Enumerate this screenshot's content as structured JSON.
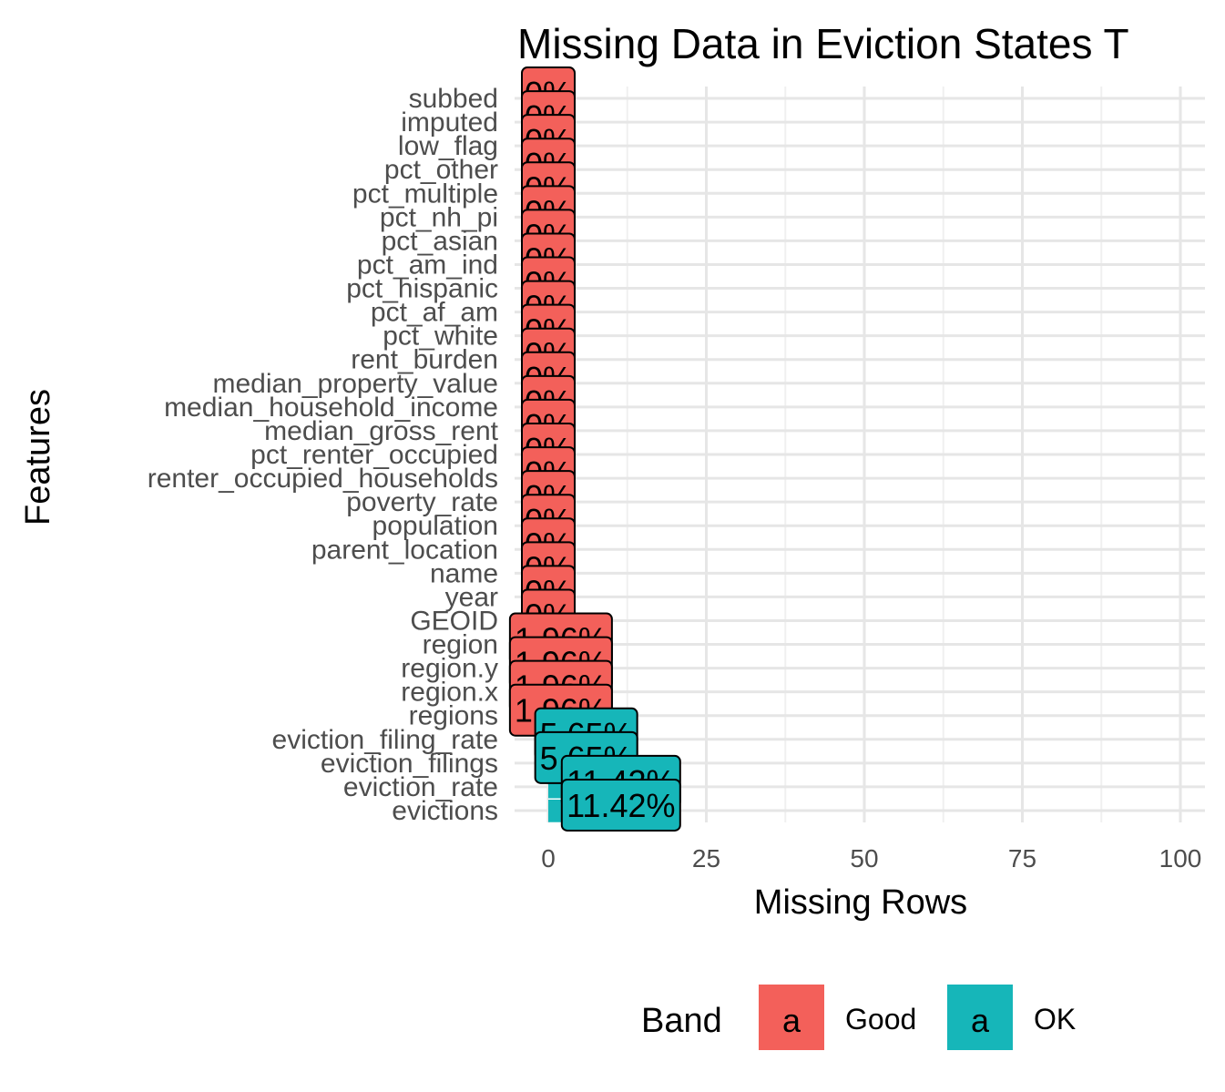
{
  "chart_data": {
    "type": "bar",
    "orientation": "horizontal",
    "title": "Missing Data in Eviction States T",
    "xlabel": "Missing Rows",
    "ylabel": "Features",
    "xlim": [
      -5,
      104
    ],
    "x_ticks": [
      0,
      25,
      50,
      75,
      100
    ],
    "grid": true,
    "legend": {
      "title": "Band",
      "position": "bottom",
      "key_glyph": "a",
      "entries": [
        {
          "name": "Good",
          "color": "#F8766D"
        },
        {
          "name": "OK",
          "color": "#00BFC4"
        }
      ]
    },
    "bands": {
      "Good": "#F3605A",
      "OK": "#16B6B9"
    },
    "rows": [
      {
        "feature": "subbed",
        "value": 0,
        "label": "0%",
        "band": "Good"
      },
      {
        "feature": "imputed",
        "value": 0,
        "label": "0%",
        "band": "Good"
      },
      {
        "feature": "low_flag",
        "value": 0,
        "label": "0%",
        "band": "Good"
      },
      {
        "feature": "pct_other",
        "value": 0,
        "label": "0%",
        "band": "Good"
      },
      {
        "feature": "pct_multiple",
        "value": 0,
        "label": "0%",
        "band": "Good"
      },
      {
        "feature": "pct_nh_pi",
        "value": 0,
        "label": "0%",
        "band": "Good"
      },
      {
        "feature": "pct_asian",
        "value": 0,
        "label": "0%",
        "band": "Good"
      },
      {
        "feature": "pct_am_ind",
        "value": 0,
        "label": "0%",
        "band": "Good"
      },
      {
        "feature": "pct_hispanic",
        "value": 0,
        "label": "0%",
        "band": "Good"
      },
      {
        "feature": "pct_af_am",
        "value": 0,
        "label": "0%",
        "band": "Good"
      },
      {
        "feature": "pct_white",
        "value": 0,
        "label": "0%",
        "band": "Good"
      },
      {
        "feature": "rent_burden",
        "value": 0,
        "label": "0%",
        "band": "Good"
      },
      {
        "feature": "median_property_value",
        "value": 0,
        "label": "0%",
        "band": "Good"
      },
      {
        "feature": "median_household_income",
        "value": 0,
        "label": "0%",
        "band": "Good"
      },
      {
        "feature": "median_gross_rent",
        "value": 0,
        "label": "0%",
        "band": "Good"
      },
      {
        "feature": "pct_renter_occupied",
        "value": 0,
        "label": "0%",
        "band": "Good"
      },
      {
        "feature": "renter_occupied_households",
        "value": 0,
        "label": "0%",
        "band": "Good"
      },
      {
        "feature": "poverty_rate",
        "value": 0,
        "label": "0%",
        "band": "Good"
      },
      {
        "feature": "population",
        "value": 0,
        "label": "0%",
        "band": "Good"
      },
      {
        "feature": "parent_location",
        "value": 0,
        "label": "0%",
        "band": "Good"
      },
      {
        "feature": "name",
        "value": 0,
        "label": "0%",
        "band": "Good"
      },
      {
        "feature": "year",
        "value": 0,
        "label": "0%",
        "band": "Good"
      },
      {
        "feature": "GEOID",
        "value": 0,
        "label": "0%",
        "band": "Good"
      },
      {
        "feature": "region",
        "value": 2,
        "label": "1.96%",
        "band": "Good"
      },
      {
        "feature": "region.y",
        "value": 2,
        "label": "1.96%",
        "band": "Good"
      },
      {
        "feature": "region.x",
        "value": 2,
        "label": "1.96%",
        "band": "Good"
      },
      {
        "feature": "regions",
        "value": 2,
        "label": "1.96%",
        "band": "Good"
      },
      {
        "feature": "eviction_filing_rate",
        "value": 6,
        "label": "5.65%",
        "band": "OK"
      },
      {
        "feature": "eviction_filings",
        "value": 6,
        "label": "5.65%",
        "band": "OK"
      },
      {
        "feature": "eviction_rate",
        "value": 11.5,
        "label": "11.42%",
        "band": "OK"
      },
      {
        "feature": "evictions",
        "value": 11.5,
        "label": "11.42%",
        "band": "OK"
      }
    ]
  }
}
